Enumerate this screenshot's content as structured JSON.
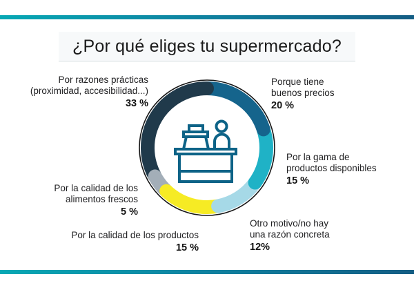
{
  "page": {
    "title": "¿Por qué eliges tu supermercado?"
  },
  "theme": {
    "bar_gradient_left": "#07a8b4",
    "bar_gradient_mid": "#0f85a2",
    "bar_gradient_right": "#145d84",
    "outline_color": "#161616",
    "icon_stroke": "#0d6387",
    "text_color": "#212123"
  },
  "icon": {
    "name": "cashier-counter-icon"
  },
  "chart_data": {
    "type": "pie",
    "variant": "donut",
    "title": "¿Por qué eliges tu supermercado?",
    "start_angle_deg": 0,
    "direction": "clockwise",
    "legend_position": "around",
    "segments": [
      {
        "label": "Porque tiene buenos precios",
        "value": 20,
        "pct_text": "20 %",
        "color": "#15648c",
        "lines": [
          "Porque tiene",
          "buenos precios"
        ]
      },
      {
        "label": "Por la gama de productos disponibles",
        "value": 15,
        "pct_text": "15 %",
        "color": "#1fb2c6",
        "lines": [
          "Por la gama de",
          "productos disponibles"
        ]
      },
      {
        "label": "Otro motivo/no hay una razón concreta",
        "value": 12,
        "pct_text": "12%",
        "color": "#a6d9e7",
        "lines": [
          "Otro motivo/no hay",
          "una razón concreta"
        ]
      },
      {
        "label": "Por la calidad de los productos",
        "value": 15,
        "pct_text": "15 %",
        "color": "#f6eb24",
        "lines": [
          "Por la calidad de los productos"
        ]
      },
      {
        "label": "Por la calidad de los alimentos frescos",
        "value": 5,
        "pct_text": "5 %",
        "color": "#a3aeb8",
        "lines": [
          "Por la calidad de los",
          "alimentos frescos"
        ]
      },
      {
        "label": "Por razones prácticas (proximidad, accesibilidad...)",
        "value": 33,
        "pct_text": "33 %",
        "color": "#203a4b",
        "lines": [
          "Por razones prácticas",
          "(proximidad, accesibilidad...)"
        ]
      }
    ]
  }
}
